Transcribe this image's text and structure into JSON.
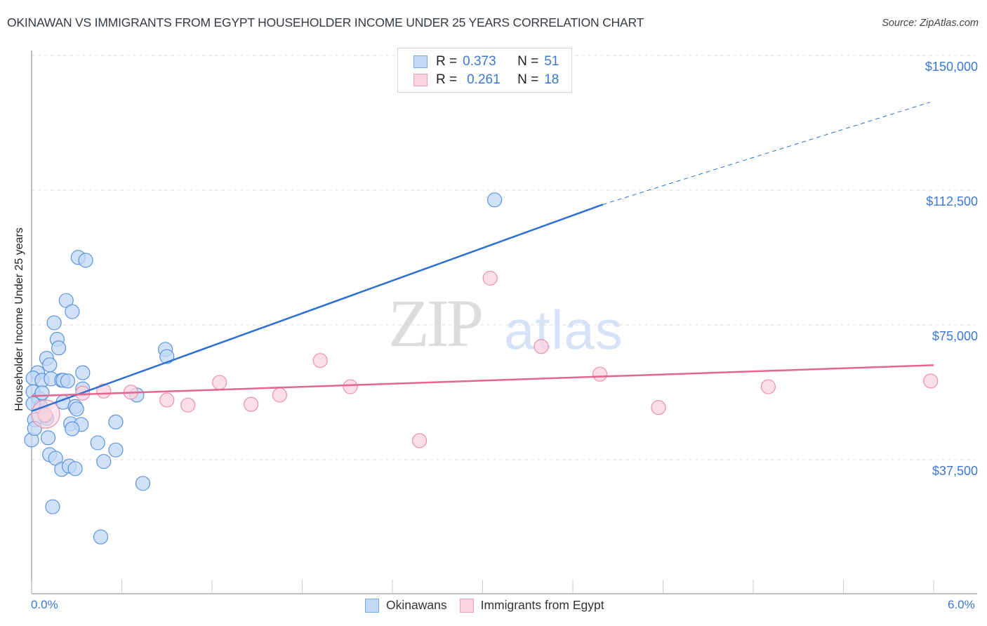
{
  "header": {
    "title": "OKINAWAN VS IMMIGRANTS FROM EGYPT HOUSEHOLDER INCOME UNDER 25 YEARS CORRELATION CHART",
    "source": "Source: ZipAtlas.com"
  },
  "watermark": {
    "zip": "ZIP",
    "atlas": "atlas"
  },
  "legend_top": {
    "rows": [
      {
        "r_label": "R =",
        "r_value": "0.373",
        "n_label": "N =",
        "n_value": "51",
        "color": "#a9c9f0"
      },
      {
        "r_label": "R =",
        "r_value": "0.261",
        "n_label": "N =",
        "n_value": "18",
        "color": "#f7c0cf"
      }
    ]
  },
  "legend_bottom": {
    "items": [
      {
        "label": "Okinawans",
        "color": "#a9c9f0"
      },
      {
        "label": "Immigrants from Egypt",
        "color": "#f7c0cf"
      }
    ]
  },
  "axes": {
    "ylabel": "Householder Income Under 25 years",
    "y_ticks": [
      "$150,000",
      "$112,500",
      "$75,000",
      "$37,500"
    ],
    "x_ticks": [
      "0.0%",
      "6.0%"
    ]
  },
  "colors": {
    "blue_point_fill": "#c2d8f5",
    "blue_point_stroke": "#5b93e0",
    "blue_line": "#2a6fd1",
    "pink_point_fill": "#fad3de",
    "pink_point_stroke": "#ea8fab",
    "pink_line": "#e5658f",
    "tick_label": "#3a78d4",
    "grid": "#dddddd"
  },
  "chart_data": {
    "type": "scatter",
    "title": "OKINAWAN VS IMMIGRANTS FROM EGYPT HOUSEHOLDER INCOME UNDER 25 YEARS CORRELATION CHART",
    "xlabel": "",
    "ylabel": "Householder Income Under 25 years",
    "xlim": [
      0.0,
      6.0
    ],
    "ylim": [
      0,
      157000
    ],
    "x_unit": "%",
    "y_ticks": [
      37500,
      75000,
      112500,
      150000
    ],
    "grid": true,
    "legend_position": "top-center and bottom",
    "series": [
      {
        "name": "Okinawans",
        "R": 0.373,
        "N": 51,
        "trend": {
          "x0": 0.0,
          "y0": 51000,
          "x1": 4.0,
          "y1": 108500,
          "dashed_extension_to": {
            "x": 6.0,
            "y": 137000
          }
        },
        "points": [
          [
            3.08,
            109800
          ],
          [
            0.31,
            93800
          ],
          [
            0.36,
            93000
          ],
          [
            0.23,
            81800
          ],
          [
            0.27,
            78700
          ],
          [
            0.15,
            75600
          ],
          [
            0.17,
            71000
          ],
          [
            0.18,
            68600
          ],
          [
            0.1,
            65700
          ],
          [
            0.12,
            63900
          ],
          [
            0.04,
            61700
          ],
          [
            0.34,
            61700
          ],
          [
            0.89,
            68200
          ],
          [
            0.9,
            66200
          ],
          [
            0.01,
            60200
          ],
          [
            0.07,
            59600
          ],
          [
            0.13,
            60000
          ],
          [
            0.2,
            59600
          ],
          [
            0.21,
            59600
          ],
          [
            0.24,
            59400
          ],
          [
            0.34,
            57200
          ],
          [
            0.01,
            56400
          ],
          [
            0.05,
            54500
          ],
          [
            0.21,
            53500
          ],
          [
            0.06,
            52300
          ],
          [
            0.29,
            52300
          ],
          [
            0.3,
            51600
          ],
          [
            0.7,
            55500
          ],
          [
            0.1,
            49000
          ],
          [
            0.56,
            48000
          ],
          [
            0.02,
            48600
          ],
          [
            0.09,
            49800
          ],
          [
            0.26,
            47500
          ],
          [
            0.33,
            47300
          ],
          [
            0.27,
            46100
          ],
          [
            0.0,
            43000
          ],
          [
            0.11,
            43600
          ],
          [
            0.44,
            42200
          ],
          [
            0.56,
            40200
          ],
          [
            0.12,
            38900
          ],
          [
            0.16,
            37900
          ],
          [
            0.2,
            34800
          ],
          [
            0.25,
            35700
          ],
          [
            0.29,
            35000
          ],
          [
            0.48,
            37000
          ],
          [
            0.74,
            30900
          ],
          [
            0.14,
            24400
          ],
          [
            0.46,
            16000
          ],
          [
            0.01,
            53100
          ],
          [
            0.07,
            56100
          ],
          [
            0.02,
            46200
          ]
        ]
      },
      {
        "name": "Immigrants from Egypt",
        "R": 0.261,
        "N": 18,
        "trend": {
          "x0": 0.0,
          "y0": 55200,
          "x1": 6.0,
          "y1": 63800
        },
        "points": [
          [
            3.05,
            88000
          ],
          [
            3.39,
            69000
          ],
          [
            1.92,
            65100
          ],
          [
            3.78,
            61300
          ],
          [
            1.25,
            59000
          ],
          [
            2.12,
            57800
          ],
          [
            5.98,
            59400
          ],
          [
            4.9,
            57800
          ],
          [
            0.48,
            56600
          ],
          [
            0.66,
            56300
          ],
          [
            1.65,
            55500
          ],
          [
            0.9,
            54100
          ],
          [
            1.04,
            52700
          ],
          [
            1.46,
            52900
          ],
          [
            4.17,
            52000
          ],
          [
            2.58,
            42800
          ],
          [
            0.34,
            56000
          ],
          [
            0.09,
            50000
          ]
        ]
      }
    ]
  }
}
